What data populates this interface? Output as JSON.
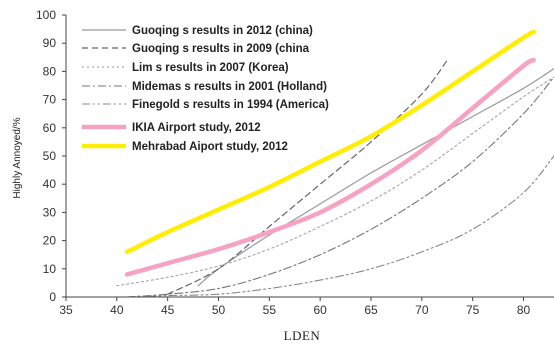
{
  "chart_data": {
    "type": "line",
    "xlabel": "LDEN",
    "ylabel": "Highly Annoyed/%",
    "xlim": [
      35,
      83
    ],
    "ylim": [
      0,
      100
    ],
    "xticks": [
      35,
      40,
      45,
      50,
      55,
      60,
      65,
      70,
      75,
      80
    ],
    "yticks": [
      0,
      10,
      20,
      30,
      40,
      50,
      60,
      70,
      80,
      90,
      100
    ],
    "legend_position": "top-left",
    "grid": false,
    "series": [
      {
        "name": "Guoqing s results in 2012 (china)",
        "color": "#999999",
        "style": "solid",
        "x": [
          48,
          50,
          55,
          60,
          65,
          70,
          75,
          80,
          83
        ],
        "y": [
          4,
          10,
          22,
          33,
          44,
          54,
          64,
          74,
          81
        ]
      },
      {
        "name": "Guoqing s results in 2009 (china",
        "color": "#666666",
        "style": "dashed",
        "x": [
          45,
          50,
          55,
          60,
          65,
          70,
          72.5
        ],
        "y": [
          1,
          10,
          25,
          40,
          55,
          72,
          84
        ]
      },
      {
        "name": "Lim s results in 2007 (Korea)",
        "color": "#aaaaaa",
        "style": "dotted",
        "x": [
          40,
          45,
          50,
          55,
          60,
          65,
          70,
          75,
          80,
          83
        ],
        "y": [
          4,
          7,
          11,
          17,
          25,
          34,
          45,
          58,
          71,
          78
        ]
      },
      {
        "name": "Midemas s results in 2001 (Holland)",
        "color": "#777777",
        "style": "dashdot",
        "x": [
          41,
          45,
          50,
          55,
          60,
          65,
          70,
          75,
          80,
          83
        ],
        "y": [
          0,
          1,
          3,
          8,
          15,
          24,
          35,
          48,
          65,
          78
        ]
      },
      {
        "name": "Finegold s results in 1994 (America)",
        "color": "#888888",
        "style": "dashdotdot",
        "x": [
          41,
          45,
          50,
          55,
          60,
          65,
          70,
          75,
          80,
          83
        ],
        "y": [
          0,
          0.5,
          1,
          3,
          6,
          10,
          16,
          24,
          37,
          50
        ]
      },
      {
        "name": "IKIA Airport study, 2012",
        "color": "#f7a1c4",
        "style": "thick",
        "x": [
          41,
          45,
          50,
          55,
          60,
          65,
          70,
          75,
          80,
          81
        ],
        "y": [
          8,
          12,
          17,
          23,
          30,
          40,
          52,
          67,
          82,
          84
        ]
      },
      {
        "name": "Mehrabad Aiport study, 2012",
        "color": "#ffee00",
        "style": "thick",
        "x": [
          41,
          45,
          50,
          55,
          60,
          65,
          70,
          75,
          80,
          81
        ],
        "y": [
          16,
          23,
          31,
          39,
          48,
          57,
          68,
          80,
          92,
          94
        ]
      }
    ]
  }
}
